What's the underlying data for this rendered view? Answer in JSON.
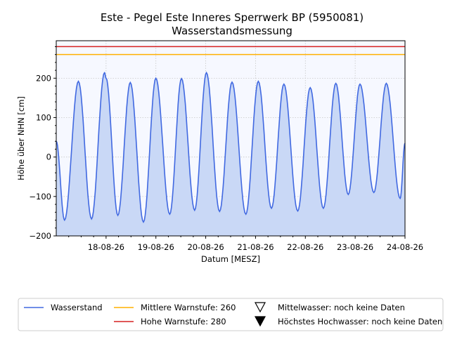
{
  "chart_data": {
    "type": "line",
    "title": "Este - Pegel Este Inneres Sperrwerk BP (5950081)",
    "subtitle": "Wasserstandsmessung",
    "xlabel": "Datum [MESZ]",
    "ylabel": "Höhe über NHN [cm]",
    "x_range": [
      "2026-08-17T00:00",
      "2026-08-24T00:00"
    ],
    "x_ticks": [
      {
        "x": "2026-08-18T00:00",
        "label": "18-08-26"
      },
      {
        "x": "2026-08-19T00:00",
        "label": "19-08-26"
      },
      {
        "x": "2026-08-20T00:00",
        "label": "20-08-26"
      },
      {
        "x": "2026-08-21T00:00",
        "label": "21-08-26"
      },
      {
        "x": "2026-08-22T00:00",
        "label": "22-08-26"
      },
      {
        "x": "2026-08-23T00:00",
        "label": "23-08-26"
      },
      {
        "x": "2026-08-24T00:00",
        "label": "24-08-26"
      }
    ],
    "ylim": [
      -200,
      295
    ],
    "y_ticks": [
      -200,
      -100,
      0,
      100,
      200
    ],
    "grid": true,
    "series": [
      {
        "name": "Wasserstand",
        "color": "#4169e1",
        "points": [
          [
            "2026-08-17T00:00",
            40
          ],
          [
            "2026-08-17T04:00",
            -160
          ],
          [
            "2026-08-17T10:40",
            192
          ],
          [
            "2026-08-17T17:00",
            -157
          ],
          [
            "2026-08-17T23:15",
            214
          ],
          [
            "2026-08-18T00:00",
            200
          ],
          [
            "2026-08-18T05:40",
            -148
          ],
          [
            "2026-08-18T11:40",
            189
          ],
          [
            "2026-08-18T18:00",
            -165
          ],
          [
            "2026-08-19T00:00",
            200
          ],
          [
            "2026-08-19T06:40",
            -145
          ],
          [
            "2026-08-19T12:20",
            199
          ],
          [
            "2026-08-19T18:40",
            -135
          ],
          [
            "2026-08-20T00:20",
            214
          ],
          [
            "2026-08-20T06:40",
            -138
          ],
          [
            "2026-08-20T12:40",
            190
          ],
          [
            "2026-08-20T19:20",
            -145
          ],
          [
            "2026-08-21T01:20",
            192
          ],
          [
            "2026-08-21T07:40",
            -130
          ],
          [
            "2026-08-21T13:40",
            185
          ],
          [
            "2026-08-21T20:20",
            -137
          ],
          [
            "2026-08-22T02:20",
            176
          ],
          [
            "2026-08-22T08:40",
            -130
          ],
          [
            "2026-08-22T14:40",
            187
          ],
          [
            "2026-08-22T20:40",
            -95
          ],
          [
            "2026-08-23T02:20",
            185
          ],
          [
            "2026-08-23T09:00",
            -90
          ],
          [
            "2026-08-23T15:00",
            187
          ],
          [
            "2026-08-23T21:40",
            -105
          ],
          [
            "2026-08-24T00:00",
            35
          ]
        ]
      }
    ],
    "thresholds": [
      {
        "name": "Mittlere Warnstufe",
        "value": 260,
        "color": "#ffb000"
      },
      {
        "name": "Hohe Warnstufe",
        "value": 280,
        "color": "#d62020"
      }
    ],
    "legend": {
      "placement": "bottom",
      "entries": [
        {
          "label": "Wasserstand",
          "marker": "line",
          "color": "#4169e1"
        },
        {
          "label": "Mittlere Warnstufe: 260",
          "marker": "line",
          "color": "#ffb000"
        },
        {
          "label": "Hohe Warnstufe: 280",
          "marker": "line",
          "color": "#d62020"
        },
        {
          "label": "Mittelwasser: noch keine Daten",
          "marker": "triangle-down-open",
          "color": "#000000"
        },
        {
          "label": "Höchstes Hochwasser: noch keine Daten",
          "marker": "triangle-down-filled",
          "color": "#000000"
        }
      ]
    },
    "colors": {
      "plot_background": "#f6f8ff",
      "area_fill": "#c9d8f6",
      "grid": "#c8c8c8"
    }
  }
}
